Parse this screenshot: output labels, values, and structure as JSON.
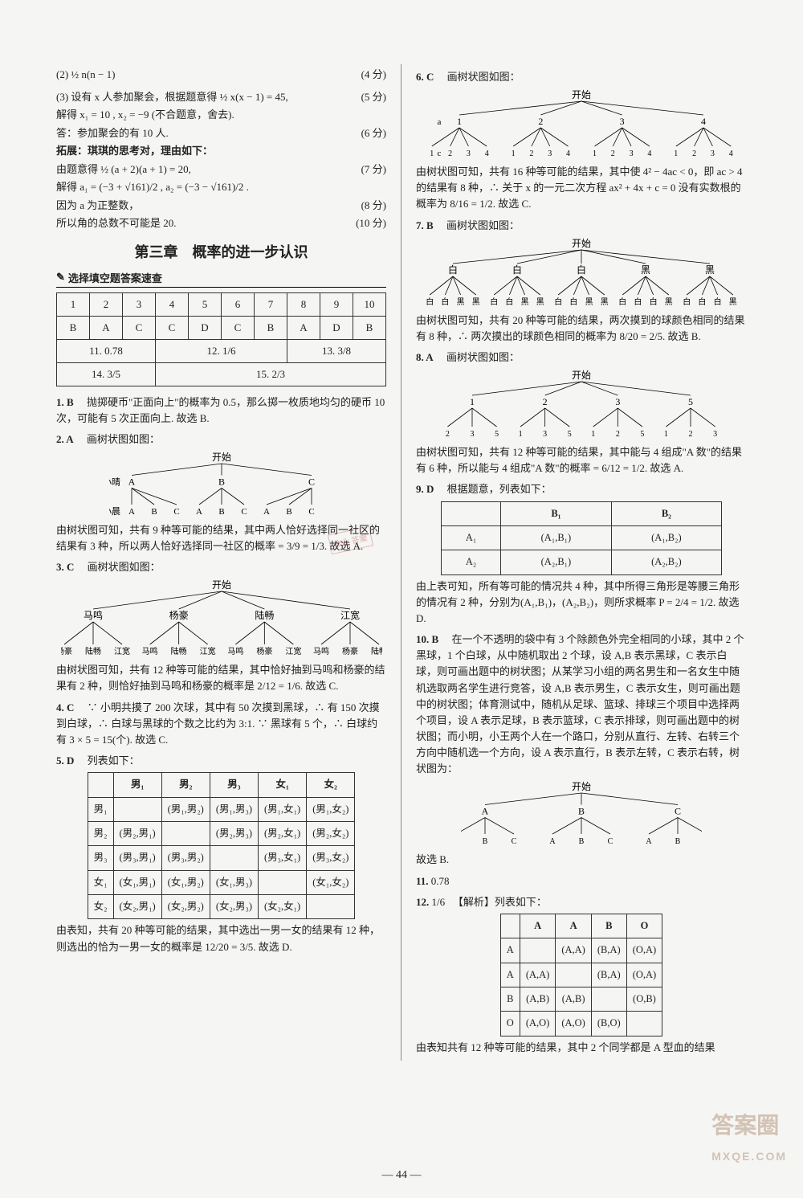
{
  "pageNumber": "— 44 —",
  "watermark": "答案圈",
  "watermarkUrl": "MXQE.COM",
  "stamp": "作业\n答案",
  "left": {
    "pre": {
      "l1": "(2) ½ n(n − 1)",
      "s1": "(4 分)",
      "l2": "(3) 设有 x 人参加聚会，根据题意得 ½ x(x − 1) = 45,",
      "s2": "(5 分)",
      "l3": "解得 x₁ = 10 , x₂ = −9 (不合题意，舍去).",
      "l4": "答：参加聚会的有 10 人.",
      "s4": "(6 分)",
      "l5": "拓展：琪琪的思考对，理由如下：",
      "l6": "由题意得 ½ (a + 2)(a + 1) = 20,",
      "s6": "(7 分)",
      "l7": "解得 a₁ = (−3 + √161)/2 , a₂ = (−3 − √161)/2 .",
      "l8": "因为 a 为正整数，",
      "s8": "(8 分)",
      "l9": "所以角的总数不可能是 20.",
      "s9": "(10 分)"
    },
    "chapterTitle": "第三章　概率的进一步认识",
    "quickLookTitle": "选择填空题答案速查",
    "answerTable": {
      "row1": [
        "1",
        "2",
        "3",
        "4",
        "5",
        "6",
        "7",
        "8",
        "9",
        "10"
      ],
      "row2": [
        "B",
        "A",
        "C",
        "C",
        "D",
        "C",
        "B",
        "A",
        "D",
        "B"
      ],
      "row3": [
        {
          "span": 3,
          "text": "11. 0.78"
        },
        {
          "span": 4,
          "text": "12. 1/6"
        },
        {
          "span": 3,
          "text": "13. 3/8"
        }
      ],
      "row4": [
        {
          "span": 3,
          "text": "14. 3/5"
        },
        {
          "span": 7,
          "text": "15. 2/3"
        }
      ]
    },
    "q1": {
      "head": "1. B",
      "body": "抛掷硬币\"正面向上\"的概率为 0.5，那么掷一枚质地均匀的硬币 10 次，可能有 5 次正面向上. 故选 B."
    },
    "q2": {
      "head": "2. A",
      "body": "画树状图如图：",
      "tree": {
        "root": "开始",
        "l1_label": "小晴",
        "l1": [
          "A",
          "B",
          "C"
        ],
        "l2_label": "小晨",
        "l2": [
          "A",
          "B",
          "C",
          "A",
          "B",
          "C",
          "A",
          "B",
          "C"
        ]
      },
      "conc": "由树状图可知，共有 9 种等可能的结果，其中两人恰好选择同一社区的结果有 3 种，所以两人恰好选择同一社区的概率 = 3/9 = 1/3. 故选 A."
    },
    "q3": {
      "head": "3. C",
      "body": "画树状图如图：",
      "tree": {
        "root": "开始",
        "l1": [
          "马鸣",
          "杨豪",
          "陆畅",
          "江宽"
        ],
        "l2": [
          [
            "杨豪",
            "陆畅",
            "江宽"
          ],
          [
            "马鸣",
            "陆畅",
            "江宽"
          ],
          [
            "马鸣",
            "杨豪",
            "江宽"
          ],
          [
            "马鸣",
            "杨豪",
            "陆畅"
          ]
        ]
      },
      "conc": "由树状图可知，共有 12 种等可能的结果，其中恰好抽到马鸣和杨豪的结果有 2 种，则恰好抽到马鸣和杨豪的概率是 2/12 = 1/6. 故选 C."
    },
    "q4": {
      "head": "4. C",
      "body": "∵ 小明共摸了 200 次球，其中有 50 次摸到黑球，∴ 有 150 次摸到白球，∴ 白球与黑球的个数之比约为 3:1. ∵ 黑球有 5 个，∴ 白球约有 3 × 5 = 15(个). 故选 C."
    },
    "q5": {
      "head": "5. D",
      "body": "列表如下：",
      "table": {
        "cols": [
          "",
          "男₁",
          "男₂",
          "男₃",
          "女₁",
          "女₂"
        ],
        "rows": [
          [
            "男₁",
            "",
            "(男₁,男₂)",
            "(男₁,男₃)",
            "(男₁,女₁)",
            "(男₁,女₂)"
          ],
          [
            "男₂",
            "(男₂,男₁)",
            "",
            "(男₂,男₃)",
            "(男₂,女₁)",
            "(男₂,女₂)"
          ],
          [
            "男₃",
            "(男₃,男₁)",
            "(男₃,男₂)",
            "",
            "(男₃,女₁)",
            "(男₃,女₂)"
          ],
          [
            "女₁",
            "(女₁,男₁)",
            "(女₁,男₂)",
            "(女₁,男₃)",
            "",
            "(女₁,女₂)"
          ],
          [
            "女₂",
            "(女₂,男₁)",
            "(女₂,男₂)",
            "(女₂,男₃)",
            "(女₂,女₁)",
            ""
          ]
        ]
      },
      "conc": "由表知，共有 20 种等可能的结果，其中选出一男一女的结果有 12 种，则选出的恰为一男一女的概率是 12/20 = 3/5. 故选 D."
    }
  },
  "right": {
    "q6": {
      "head": "6. C",
      "body": "画树状图如图：",
      "tree": {
        "root": "开始",
        "l1_label": "a",
        "l1": [
          "1",
          "2",
          "3",
          "4"
        ],
        "l2_label": "c",
        "l2": [
          "1 2 3 4",
          "1 2 3 4",
          "1 2 3 4",
          "1 2 3 4"
        ]
      },
      "conc": "由树状图可知，共有 16 种等可能的结果，其中使 4² − 4ac < 0，即 ac > 4 的结果有 8 种，∴ 关于 x 的一元二次方程 ax² + 4x + c = 0 没有实数根的概率为 8/16 = 1/2. 故选 C."
    },
    "q7": {
      "head": "7. B",
      "body": "画树状图如图：",
      "tree": {
        "root": "开始",
        "l1": [
          "白",
          "白",
          "白",
          "黑",
          "黑"
        ],
        "l2": [
          "白 白 黑 黑",
          "白 白 黑 黑",
          "白 白 黑 黑",
          "白 白 白 黑",
          "白 白 白 黑"
        ]
      },
      "conc": "由树状图可知，共有 20 种等可能的结果，两次摸到的球颜色相同的结果有 8 种，∴ 两次摸出的球颜色相同的概率为 8/20 = 2/5. 故选 B."
    },
    "q8": {
      "head": "8. A",
      "body": "画树状图如图：",
      "tree": {
        "root": "开始",
        "l1": [
          "1",
          "2",
          "3",
          "5"
        ],
        "l2": [
          "2 3 5",
          "1 3 5",
          "1 2 5",
          "1 2 3"
        ]
      },
      "conc": "由树状图可知，共有 12 种等可能的结果，其中能与 4 组成\"A 数\"的结果有 6 种，所以能与 4 组成\"A 数\"的概率 = 6/12 = 1/2. 故选 A."
    },
    "q9": {
      "head": "9. D",
      "body": "根据题意，列表如下：",
      "table": {
        "cols": [
          "",
          "B₁",
          "B₂"
        ],
        "rows": [
          [
            "A₁",
            "(A₁,B₁)",
            "(A₁,B₂)"
          ],
          [
            "A₂",
            "(A₂,B₁)",
            "(A₂,B₂)"
          ]
        ]
      },
      "conc": "由上表可知，所有等可能的情况共 4 种，其中所得三角形是等腰三角形的情况有 2 种，分别为(A₁,B₁)，(A₂,B₂)，则所求概率 P = 2/4 = 1/2. 故选 D."
    },
    "q10": {
      "head": "10. B",
      "body": "在一个不透明的袋中有 3 个除颜色外完全相同的小球，其中 2 个黑球，1 个白球，从中随机取出 2 个球，设 A,B 表示黑球，C 表示白球，则可画出题中的树状图；从某学习小组的两名男生和一名女生中随机选取两名学生进行竞答，设 A,B 表示男生，C 表示女生，则可画出题中的树状图；体育测试中，随机从足球、篮球、排球三个项目中选择两个项目，设 A 表示足球，B 表示篮球，C 表示排球，则可画出题中的树状图；而小明，小王两个人在一个路口，分别从直行、左转、右转三个方向中随机选一个方向，设 A 表示直行，B 表示左转，C 表示右转，树状图为：",
      "tree": {
        "root": "开始",
        "l1": [
          "A",
          "B",
          "C"
        ],
        "l2": [
          "A  B  C",
          "A  B  C",
          "A  B  C"
        ]
      },
      "conc": "故选 B."
    },
    "q11": {
      "head": "11.",
      "ans": "0.78"
    },
    "q12": {
      "head": "12.",
      "ans": "1/6",
      "hint": "【解析】列表如下：",
      "table": {
        "cols": [
          "",
          "A",
          "A",
          "B",
          "O"
        ],
        "rows": [
          [
            "A",
            "",
            "(A,A)",
            "(B,A)",
            "(O,A)"
          ],
          [
            "A",
            "(A,A)",
            "",
            "(B,A)",
            "(O,A)"
          ],
          [
            "B",
            "(A,B)",
            "(A,B)",
            "",
            "(O,B)"
          ],
          [
            "O",
            "(A,O)",
            "(A,O)",
            "(B,O)",
            ""
          ]
        ]
      },
      "conc": "由表知共有 12 种等可能的结果，其中 2 个同学都是 A 型血的结果"
    }
  }
}
